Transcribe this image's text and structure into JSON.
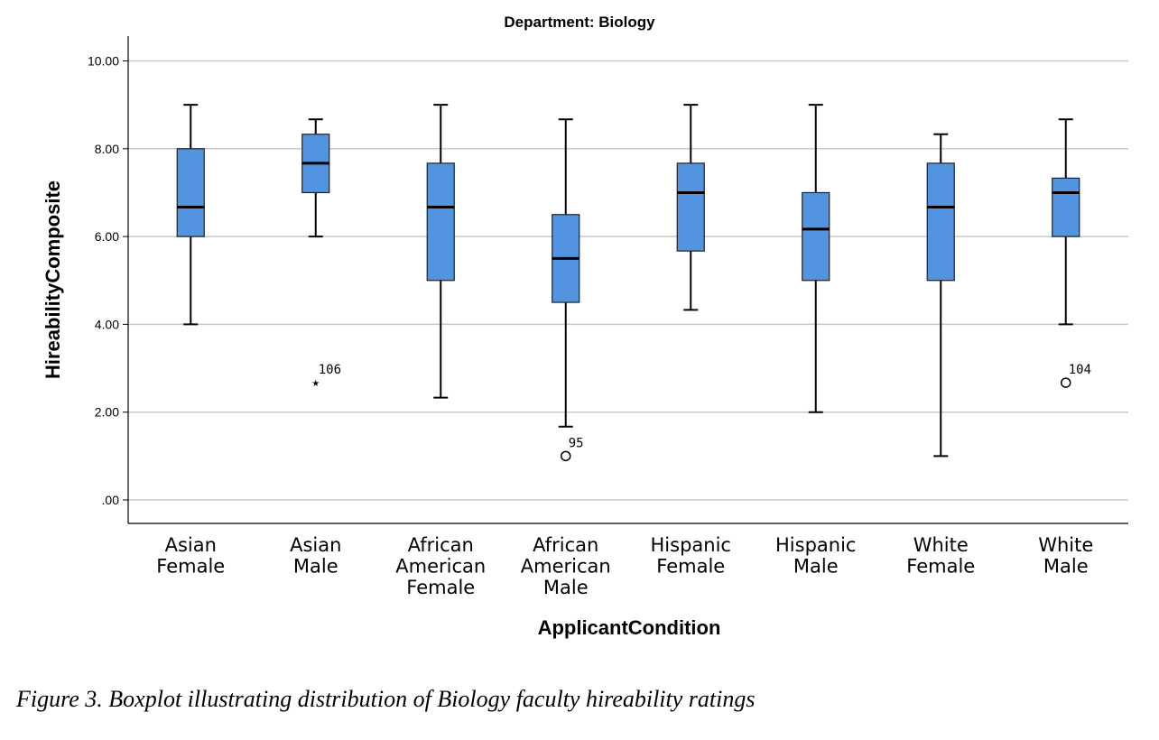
{
  "caption": "Figure 3. Boxplot illustrating distribution of Biology faculty hireability ratings",
  "chart_data": {
    "type": "boxplot",
    "title": "Department: Biology",
    "xlabel": "ApplicantCondition",
    "ylabel": "HireabilityComposite",
    "ylim": [
      -0.55,
      10.55
    ],
    "yticks": [
      0,
      2,
      4,
      6,
      8,
      10
    ],
    "ytick_labels": [
      ".00",
      "2.00",
      "4.00",
      "6.00",
      "8.00",
      "10.00"
    ],
    "grid": true,
    "box_color": "#5294e0",
    "categories": [
      [
        "Asian",
        "Female"
      ],
      [
        "Asian",
        "Male"
      ],
      [
        "African",
        "American",
        "Female"
      ],
      [
        "African",
        "American",
        "Male"
      ],
      [
        "Hispanic",
        "Female"
      ],
      [
        "Hispanic",
        "Male"
      ],
      [
        "White",
        "Female"
      ],
      [
        "White",
        "Male"
      ]
    ],
    "boxes": [
      {
        "whisker_low": 4.0,
        "q1": 6.0,
        "median": 6.67,
        "q3": 8.0,
        "whisker_high": 9.0
      },
      {
        "whisker_low": 6.0,
        "q1": 7.0,
        "median": 7.67,
        "q3": 8.33,
        "whisker_high": 8.67
      },
      {
        "whisker_low": 2.33,
        "q1": 5.0,
        "median": 6.67,
        "q3": 7.67,
        "whisker_high": 9.0
      },
      {
        "whisker_low": 1.67,
        "q1": 4.5,
        "median": 5.5,
        "q3": 6.5,
        "whisker_high": 8.67
      },
      {
        "whisker_low": 4.33,
        "q1": 5.67,
        "median": 7.0,
        "q3": 7.67,
        "whisker_high": 9.0
      },
      {
        "whisker_low": 2.0,
        "q1": 5.0,
        "median": 6.17,
        "q3": 7.0,
        "whisker_high": 9.0
      },
      {
        "whisker_low": 1.0,
        "q1": 5.0,
        "median": 6.67,
        "q3": 7.67,
        "whisker_high": 8.33
      },
      {
        "whisker_low": 4.0,
        "q1": 6.0,
        "median": 7.0,
        "q3": 7.33,
        "whisker_high": 8.67
      }
    ],
    "outliers": [
      {
        "category_index": 1,
        "value": 2.67,
        "marker": "star",
        "label": "106"
      },
      {
        "category_index": 3,
        "value": 1.0,
        "marker": "circle",
        "label": "95"
      },
      {
        "category_index": 7,
        "value": 2.67,
        "marker": "circle",
        "label": "104"
      }
    ]
  }
}
